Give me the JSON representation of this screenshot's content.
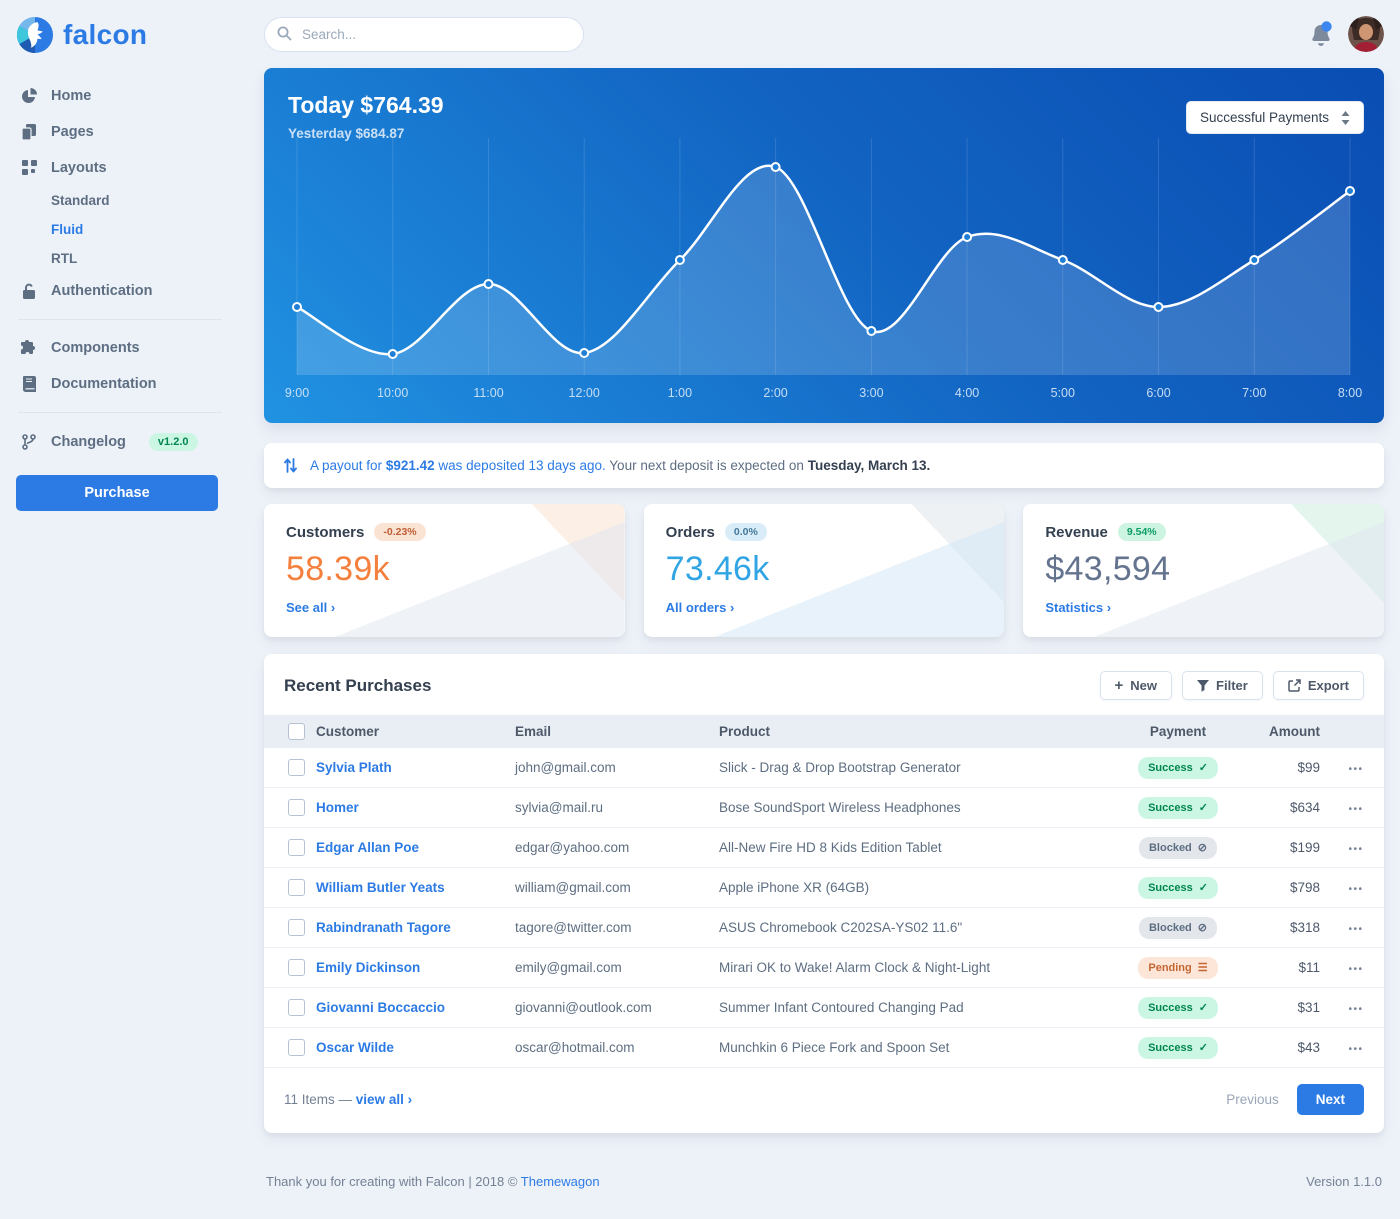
{
  "brand": {
    "name": "falcon"
  },
  "topbar": {
    "search_placeholder": "Search..."
  },
  "sidebar": {
    "items": [
      {
        "label": "Home",
        "icon": "chart-pie-icon"
      },
      {
        "label": "Pages",
        "icon": "pages-icon"
      },
      {
        "label": "Layouts",
        "icon": "grid-icon"
      },
      {
        "label": "Authentication",
        "icon": "lock-icon"
      },
      {
        "label": "Components",
        "icon": "puzzle-icon"
      },
      {
        "label": "Documentation",
        "icon": "book-icon"
      },
      {
        "label": "Changelog",
        "icon": "code-branch-icon",
        "badge": "v1.2.0"
      }
    ],
    "layouts_children": [
      "Standard",
      "Fluid",
      "RTL"
    ],
    "active_child": "Fluid",
    "purchase_label": "Purchase"
  },
  "chart_card": {
    "today_label": "Today $764.39",
    "yesterday_label": "Yesterday $684.87",
    "dropdown_value": "Successful Payments"
  },
  "chart_data": {
    "type": "line",
    "title": "Today $764.39",
    "subtitle": "Yesterday $684.87",
    "x": [
      "9:00",
      "10:00",
      "11:00",
      "12:00",
      "1:00",
      "2:00",
      "3:00",
      "4:00",
      "5:00",
      "6:00",
      "7:00",
      "8:00"
    ],
    "values": [
      68,
      21,
      91,
      22,
      115,
      208,
      44,
      138,
      115,
      68,
      115,
      184
    ],
    "ylim": [
      0,
      230
    ],
    "series_name": "Successful Payments",
    "line_color": "#ffffff",
    "fill_color": "rgba(255,255,255,0.16)",
    "grid": "vertical",
    "legend": "none",
    "label_color": "#cfe3f6"
  },
  "payout": {
    "link_pre": "A payout for",
    "amount": "$921.42",
    "link_post": "was deposited 13 days ago.",
    "mid": "Your next deposit is expected on",
    "strong": "Tuesday, March 13."
  },
  "stats": [
    {
      "title": "Customers",
      "badge": "-0.23%",
      "badge_bg": "#fbe3d3",
      "badge_color": "#bf5e34",
      "value": "58.39k",
      "value_color": "#f5803e",
      "link": "See all",
      "corner_primary": "#fcefe6",
      "corner_secondary": "#dfe6f0"
    },
    {
      "title": "Orders",
      "badge": "0.0%",
      "badge_bg": "#d9edf8",
      "badge_color": "#44789c",
      "value": "73.46k",
      "value_color": "#31a5e4",
      "link": "All orders",
      "corner_primary": "#eef1f4",
      "corner_secondary": "#cfe6f6"
    },
    {
      "title": "Revenue",
      "badge": "9.54%",
      "badge_bg": "#cdf3e1",
      "badge_color": "#0c9c66",
      "value": "$43,594",
      "value_color": "#64748f",
      "link": "Statistics",
      "corner_primary": "#e3f5ec",
      "corner_secondary": "#dfe6f0"
    }
  ],
  "purchases": {
    "title": "Recent Purchases",
    "buttons": {
      "new": "New",
      "filter": "Filter",
      "export": "Export"
    },
    "columns": [
      "Customer",
      "Email",
      "Product",
      "Payment",
      "Amount"
    ],
    "status_icons": {
      "success": "✓",
      "blocked": "⊘",
      "pending": "☰"
    },
    "row_actions_icon": "•••",
    "rows": [
      {
        "customer": "Sylvia Plath",
        "email": "john@gmail.com",
        "product": "Slick - Drag & Drop Bootstrap Generator",
        "payment": {
          "label": "Success",
          "type": "success"
        },
        "amount": "$99"
      },
      {
        "customer": "Homer",
        "email": "sylvia@mail.ru",
        "product": "Bose SoundSport Wireless Headphones",
        "payment": {
          "label": "Success",
          "type": "success"
        },
        "amount": "$634"
      },
      {
        "customer": "Edgar Allan Poe",
        "email": "edgar@yahoo.com",
        "product": "All-New Fire HD 8 Kids Edition Tablet",
        "payment": {
          "label": "Blocked",
          "type": "blocked"
        },
        "amount": "$199"
      },
      {
        "customer": "William Butler Yeats",
        "email": "william@gmail.com",
        "product": "Apple iPhone XR (64GB)",
        "payment": {
          "label": "Success",
          "type": "success"
        },
        "amount": "$798"
      },
      {
        "customer": "Rabindranath Tagore",
        "email": "tagore@twitter.com",
        "product": "ASUS Chromebook C202SA-YS02 11.6\"",
        "payment": {
          "label": "Blocked",
          "type": "blocked"
        },
        "amount": "$318"
      },
      {
        "customer": "Emily Dickinson",
        "email": "emily@gmail.com",
        "product": "Mirari OK to Wake! Alarm Clock & Night-Light",
        "payment": {
          "label": "Pending",
          "type": "pending"
        },
        "amount": "$11"
      },
      {
        "customer": "Giovanni Boccaccio",
        "email": "giovanni@outlook.com",
        "product": "Summer Infant Contoured Changing Pad",
        "payment": {
          "label": "Success",
          "type": "success"
        },
        "amount": "$31"
      },
      {
        "customer": "Oscar Wilde",
        "email": "oscar@hotmail.com",
        "product": "Munchkin 6 Piece Fork and Spoon Set",
        "payment": {
          "label": "Success",
          "type": "success"
        },
        "amount": "$43"
      }
    ],
    "footer": {
      "count_text": "11 Items —",
      "view_all": "view all",
      "previous": "Previous",
      "next": "Next"
    }
  },
  "page_footer": {
    "left_pre": "Thank you for creating with Falcon | 2018 © ",
    "left_link": "Themewagon",
    "right": "Version 1.1.0"
  },
  "colors": {
    "primary": "#2c7be5",
    "page_bg": "#edf2f9",
    "chart_gradient": [
      "#0a4db3",
      "#2192e2"
    ]
  }
}
